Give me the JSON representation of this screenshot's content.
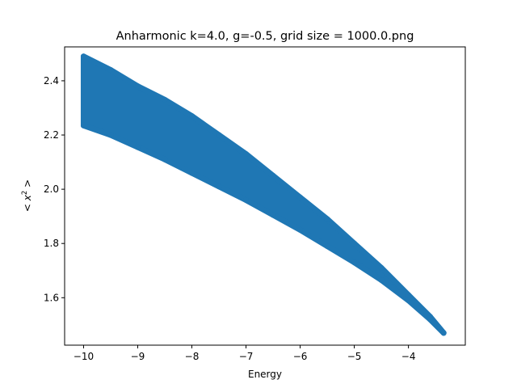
{
  "chart_data": {
    "type": "scatter",
    "title": "Anharmonic  k=4.0, g=-0.5, grid size = 1000.0.png",
    "xlabel": "Energy",
    "ylabel_base": "< x",
    "ylabel_sup": "2",
    "ylabel_end": " >",
    "xlim": [
      -10.35,
      -2.95
    ],
    "ylim": [
      1.425,
      2.525
    ],
    "xticks": [
      -10,
      -9,
      -8,
      -7,
      -6,
      -5,
      -4
    ],
    "yticks": [
      1.6,
      1.8,
      2.0,
      2.2,
      2.4
    ],
    "xtick_labels": [
      "−10",
      "−9",
      "−8",
      "−7",
      "−6",
      "−5",
      "−4"
    ],
    "ytick_labels": [
      "1.6",
      "1.8",
      "2.0",
      "2.2",
      "2.4"
    ],
    "series_color": "#1f77b4",
    "marker": "circle",
    "grid": false,
    "legend": "none",
    "upper_boundary": [
      {
        "x": -10.0,
        "y": 2.49
      },
      {
        "x": -9.5,
        "y": 2.44
      },
      {
        "x": -9.0,
        "y": 2.38
      },
      {
        "x": -8.5,
        "y": 2.33
      },
      {
        "x": -8.0,
        "y": 2.27
      },
      {
        "x": -7.5,
        "y": 2.2
      },
      {
        "x": -7.0,
        "y": 2.13
      },
      {
        "x": -6.5,
        "y": 2.05
      },
      {
        "x": -6.0,
        "y": 1.97
      },
      {
        "x": -5.5,
        "y": 1.89
      },
      {
        "x": -5.0,
        "y": 1.8
      },
      {
        "x": -4.5,
        "y": 1.71
      },
      {
        "x": -4.0,
        "y": 1.61
      },
      {
        "x": -3.6,
        "y": 1.53
      },
      {
        "x": -3.35,
        "y": 1.47
      }
    ],
    "lower_boundary": [
      {
        "x": -10.0,
        "y": 2.235
      },
      {
        "x": -9.5,
        "y": 2.2
      },
      {
        "x": -9.0,
        "y": 2.155
      },
      {
        "x": -8.5,
        "y": 2.11
      },
      {
        "x": -8.0,
        "y": 2.06
      },
      {
        "x": -7.5,
        "y": 2.01
      },
      {
        "x": -7.0,
        "y": 1.96
      },
      {
        "x": -6.5,
        "y": 1.905
      },
      {
        "x": -6.0,
        "y": 1.85
      },
      {
        "x": -5.5,
        "y": 1.79
      },
      {
        "x": -5.0,
        "y": 1.73
      },
      {
        "x": -4.5,
        "y": 1.665
      },
      {
        "x": -4.0,
        "y": 1.59
      },
      {
        "x": -3.6,
        "y": 1.52
      },
      {
        "x": -3.35,
        "y": 1.47
      }
    ]
  }
}
